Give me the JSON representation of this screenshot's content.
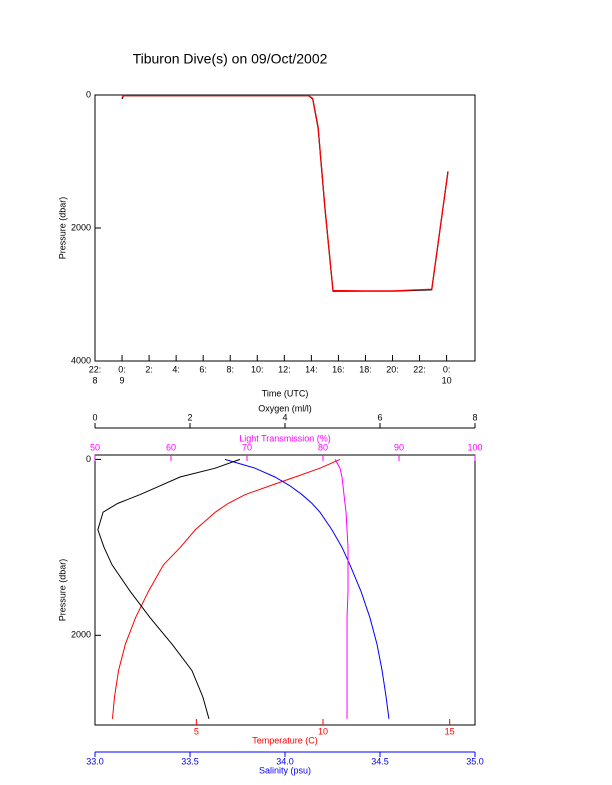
{
  "chart_data": [
    {
      "type": "line",
      "title": "Tiburon Dive(s) on 09/Oct/2002",
      "xlabel": "Time (UTC)",
      "ylabel": "Pressure (dbar)",
      "x": [
        0,
        0.1,
        13.8,
        14.1,
        14.5,
        15.0,
        15.6,
        18,
        20,
        22.9,
        24.1
      ],
      "xlim": [
        -2,
        26.1
      ],
      "xticks": [
        {
          "value": -2,
          "label": "22:"
        },
        {
          "value": 0,
          "label": "0:"
        },
        {
          "value": 2,
          "label": "2:"
        },
        {
          "value": 4,
          "label": "4:"
        },
        {
          "value": 6,
          "label": "6:"
        },
        {
          "value": 8,
          "label": "8:"
        },
        {
          "value": 10,
          "label": "10:"
        },
        {
          "value": 12,
          "label": "12:"
        },
        {
          "value": 14,
          "label": "14:"
        },
        {
          "value": 16,
          "label": "16:"
        },
        {
          "value": 18,
          "label": "18:"
        },
        {
          "value": 20,
          "label": "20:"
        },
        {
          "value": 22,
          "label": "22:"
        },
        {
          "value": 24,
          "label": "0:"
        }
      ],
      "xday_labels": [
        {
          "value": -2,
          "label": "8"
        },
        {
          "value": 0,
          "label": "9"
        },
        {
          "value": 24,
          "label": "10"
        }
      ],
      "ylim": [
        0,
        4000
      ],
      "yinvert": true,
      "yticks": [
        0,
        2000,
        4000
      ],
      "series": [
        {
          "color": "#000000",
          "values": [
            60,
            10,
            10,
            60,
            500,
            1700,
            2950,
            2950,
            2950,
            2930,
            1150
          ]
        },
        {
          "color": "#ff0000",
          "values": [
            40,
            10,
            10,
            50,
            480,
            1680,
            2940,
            2945,
            2945,
            2920,
            1160
          ]
        }
      ]
    },
    {
      "type": "profile",
      "ylabel": "Pressure (dbar)",
      "y": [
        0,
        100,
        200,
        300,
        400,
        500,
        600,
        800,
        1000,
        1200,
        1500,
        1800,
        2100,
        2400,
        2700,
        2950
      ],
      "ylim": [
        -50,
        3020
      ],
      "yinvert": true,
      "yticks": [
        0,
        2000
      ],
      "series": [
        {
          "name": "Temperature (C)",
          "color": "#ff0000",
          "axis": "bottom",
          "xlim": [
            1,
            16
          ],
          "xticks": [
            5,
            10,
            15
          ],
          "values": [
            10.67,
            9.88,
            8.9,
            7.91,
            6.93,
            6.26,
            5.75,
            4.96,
            4.37,
            3.7,
            3.11,
            2.6,
            2.2,
            1.93,
            1.77,
            1.69
          ]
        },
        {
          "name": "Salinity (psu)",
          "color": "#0000ff",
          "axis": "bottom",
          "xlim": [
            33,
            35
          ],
          "xticks": [
            {
              "value": 33,
              "label": "33.0"
            },
            {
              "value": 33.5,
              "label": "33.5"
            },
            {
              "value": 34,
              "label": "34.0"
            },
            {
              "value": 34.5,
              "label": "34.5"
            },
            {
              "value": 35,
              "label": "35.0"
            }
          ],
          "values": [
            33.684,
            33.842,
            33.947,
            34.026,
            34.089,
            34.142,
            34.184,
            34.247,
            34.3,
            34.342,
            34.4,
            34.447,
            34.484,
            34.511,
            34.532,
            34.547
          ]
        },
        {
          "name": "Light Transmission (%)",
          "color": "#ff00ff",
          "axis": "top",
          "xlim": [
            50,
            100
          ],
          "xticks": [
            50,
            60,
            70,
            80,
            90,
            100
          ],
          "values": [
            81.58,
            82.24,
            82.5,
            82.63,
            82.76,
            82.89,
            83.03,
            83.16,
            83.29,
            83.29,
            83.29,
            83.16,
            83.16,
            83.16,
            83.16,
            83.16
          ]
        },
        {
          "name": "Oxygen (ml/l)",
          "color": "#000000",
          "axis": "top",
          "xlim": [
            0,
            8
          ],
          "xticks": [
            0,
            2,
            4,
            6,
            8
          ],
          "values": [
            3.05,
            2.53,
            1.79,
            1.37,
            0.95,
            0.48,
            0.17,
            0.06,
            0.19,
            0.36,
            0.74,
            1.16,
            1.62,
            2.04,
            2.27,
            2.4
          ]
        }
      ]
    }
  ]
}
